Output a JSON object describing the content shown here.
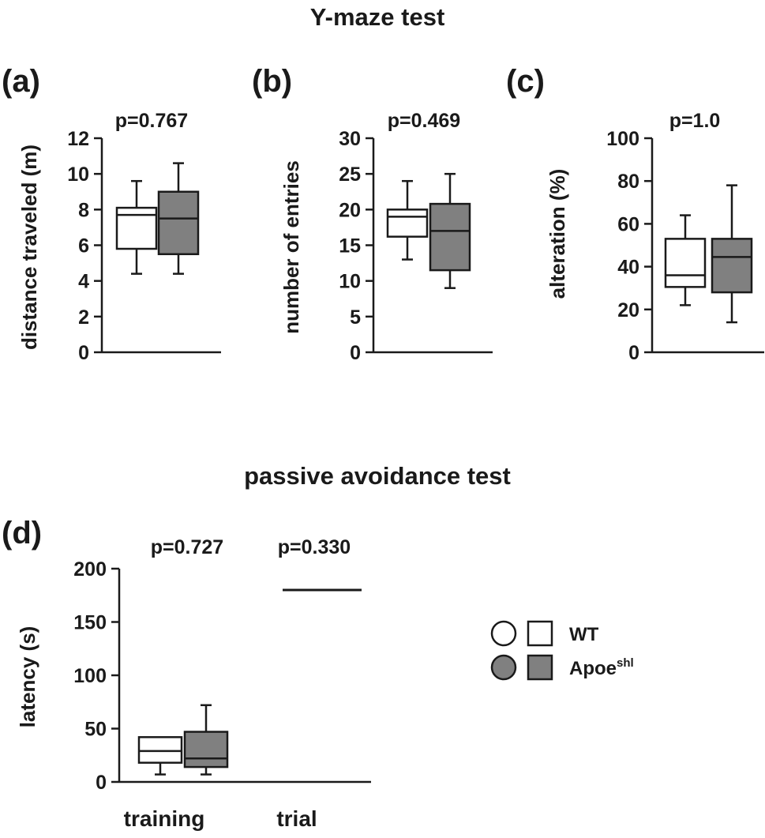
{
  "colors": {
    "wt": "#ffffff",
    "apoe": "#808080",
    "ink": "#1a1a1a"
  },
  "titles": {
    "ymaze": "Y-maze test",
    "passive": "passive avoidance test"
  },
  "legend": {
    "items": [
      {
        "label": "WT",
        "sup": "",
        "color": "#ffffff"
      },
      {
        "label": "Apoe",
        "sup": "shl",
        "color": "#808080"
      }
    ]
  },
  "chart_data": [
    {
      "id": "a",
      "type": "box",
      "panel_label": "(a)",
      "pvalue": "p=0.767",
      "ylabel": "distance traveled (m)",
      "ylim": [
        0,
        12
      ],
      "yticks": [
        "0",
        "2",
        "4",
        "6",
        "8",
        "10",
        "12"
      ],
      "categories": [
        ""
      ],
      "series": [
        {
          "name": "WT",
          "color": "#ffffff",
          "boxes": [
            {
              "min": 4.4,
              "q1": 5.8,
              "median": 7.7,
              "q3": 8.1,
              "max": 9.6
            }
          ]
        },
        {
          "name": "Apoe shl",
          "color": "#808080",
          "boxes": [
            {
              "min": 4.4,
              "q1": 5.5,
              "median": 7.5,
              "q3": 9.0,
              "max": 10.6
            }
          ]
        }
      ]
    },
    {
      "id": "b",
      "type": "box",
      "panel_label": "(b)",
      "pvalue": "p=0.469",
      "ylabel": "number of entries",
      "ylim": [
        0,
        30
      ],
      "yticks": [
        "0",
        "5",
        "10",
        "15",
        "20",
        "25",
        "30"
      ],
      "categories": [
        ""
      ],
      "series": [
        {
          "name": "WT",
          "color": "#ffffff",
          "boxes": [
            {
              "min": 13,
              "q1": 16.2,
              "median": 19,
              "q3": 20,
              "max": 24
            }
          ]
        },
        {
          "name": "Apoe shl",
          "color": "#808080",
          "boxes": [
            {
              "min": 9,
              "q1": 11.5,
              "median": 17,
              "q3": 20.8,
              "max": 25
            }
          ]
        }
      ]
    },
    {
      "id": "c",
      "type": "box",
      "panel_label": "(c)",
      "pvalue": "p=1.0",
      "ylabel": "alteration (%)",
      "ylim": [
        0,
        100
      ],
      "yticks": [
        "0",
        "20",
        "40",
        "60",
        "80",
        "100"
      ],
      "categories": [
        ""
      ],
      "series": [
        {
          "name": "WT",
          "color": "#ffffff",
          "boxes": [
            {
              "min": 22,
              "q1": 30.5,
              "median": 36,
              "q3": 53,
              "max": 64
            }
          ]
        },
        {
          "name": "Apoe shl",
          "color": "#808080",
          "boxes": [
            {
              "min": 14,
              "q1": 28,
              "median": 44.5,
              "q3": 53,
              "max": 78
            }
          ]
        }
      ]
    },
    {
      "id": "d",
      "type": "box",
      "panel_label": "(d)",
      "pvalues": [
        "p=0.727",
        "p=0.330"
      ],
      "ylabel": "latency (s)",
      "ylim": [
        0,
        200
      ],
      "yticks": [
        "0",
        "50",
        "100",
        "150",
        "200"
      ],
      "categories": [
        "training",
        "trial"
      ],
      "series": [
        {
          "name": "WT",
          "color": "#ffffff",
          "boxes": [
            {
              "min": 7,
              "q1": 18,
              "median": 29,
              "q3": 42,
              "max": 42
            },
            {
              "min": 180,
              "q1": 180,
              "median": 180,
              "q3": 180,
              "max": 180
            }
          ]
        },
        {
          "name": "Apoe shl",
          "color": "#808080",
          "boxes": [
            {
              "min": 7,
              "q1": 14,
              "median": 22,
              "q3": 47,
              "max": 72
            },
            {
              "min": 180,
              "q1": 180,
              "median": 180,
              "q3": 180,
              "max": 180
            }
          ]
        }
      ]
    }
  ]
}
